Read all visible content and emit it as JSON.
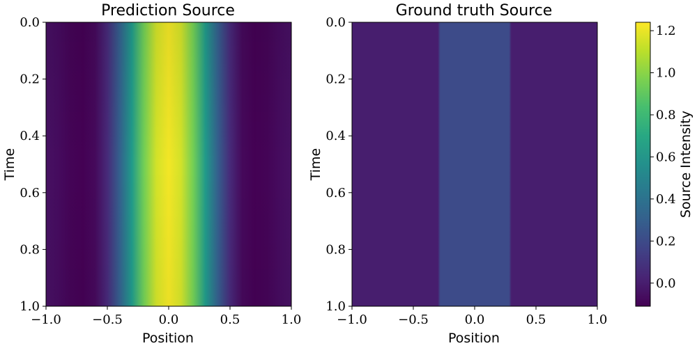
{
  "chart_data": [
    {
      "type": "heatmap",
      "title": "Prediction Source",
      "xlabel": "Position",
      "ylabel": "Time",
      "xlim": [
        -1.0,
        1.0
      ],
      "ylim": [
        1.0,
        0.0
      ],
      "x_ticks": [
        "−1.0",
        "−0.5",
        "0.0",
        "0.5",
        "1.0"
      ],
      "y_ticks": [
        "0.0",
        "0.2",
        "0.4",
        "0.6",
        "0.8",
        "1.0"
      ],
      "profile": {
        "description_of_values": "intensity vs position at time 0.5",
        "x": [
          -1.0,
          -0.9,
          -0.8,
          -0.7,
          -0.6,
          -0.5,
          -0.4,
          -0.3,
          -0.2,
          -0.1,
          0.0,
          0.1,
          0.2,
          0.3,
          0.4,
          0.5,
          0.6,
          0.7,
          0.8,
          0.9,
          1.0
        ],
        "values": [
          -0.05,
          -0.07,
          -0.1,
          -0.11,
          -0.08,
          0.05,
          0.3,
          0.62,
          0.95,
          1.15,
          1.22,
          1.15,
          0.95,
          0.62,
          0.3,
          0.05,
          -0.08,
          -0.11,
          -0.1,
          -0.07,
          -0.05
        ]
      },
      "time_modulation": {
        "t": [
          0.0,
          0.5,
          1.0
        ],
        "factor": [
          0.92,
          1.0,
          0.95
        ]
      }
    },
    {
      "type": "heatmap",
      "title": "Ground truth Source",
      "xlabel": "Position",
      "ylabel": "Time",
      "xlim": [
        -1.0,
        1.0
      ],
      "ylim": [
        1.0,
        0.0
      ],
      "x_ticks": [
        "−1.0",
        "−0.5",
        "0.0",
        "0.5",
        "1.0"
      ],
      "y_ticks": [
        "0.0",
        "0.2",
        "0.4",
        "0.6",
        "0.8",
        "1.0"
      ],
      "profile": {
        "x": [
          -1.0,
          -0.3,
          -0.28,
          0.28,
          0.3,
          1.0
        ],
        "values": [
          0.0,
          0.0,
          0.2,
          0.2,
          0.0,
          0.0
        ]
      }
    }
  ],
  "colorbar": {
    "label": "Source Intensity",
    "range": [
      -0.11,
      1.24
    ],
    "ticks": [
      {
        "value": 0.0,
        "label": "0.0"
      },
      {
        "value": 0.2,
        "label": "0.2"
      },
      {
        "value": 0.4,
        "label": "0.4"
      },
      {
        "value": 0.6,
        "label": "0.6"
      },
      {
        "value": 0.8,
        "label": "0.8"
      },
      {
        "value": 1.0,
        "label": "1.0"
      },
      {
        "value": 1.2,
        "label": "1.2"
      }
    ],
    "colormap": "viridis"
  }
}
